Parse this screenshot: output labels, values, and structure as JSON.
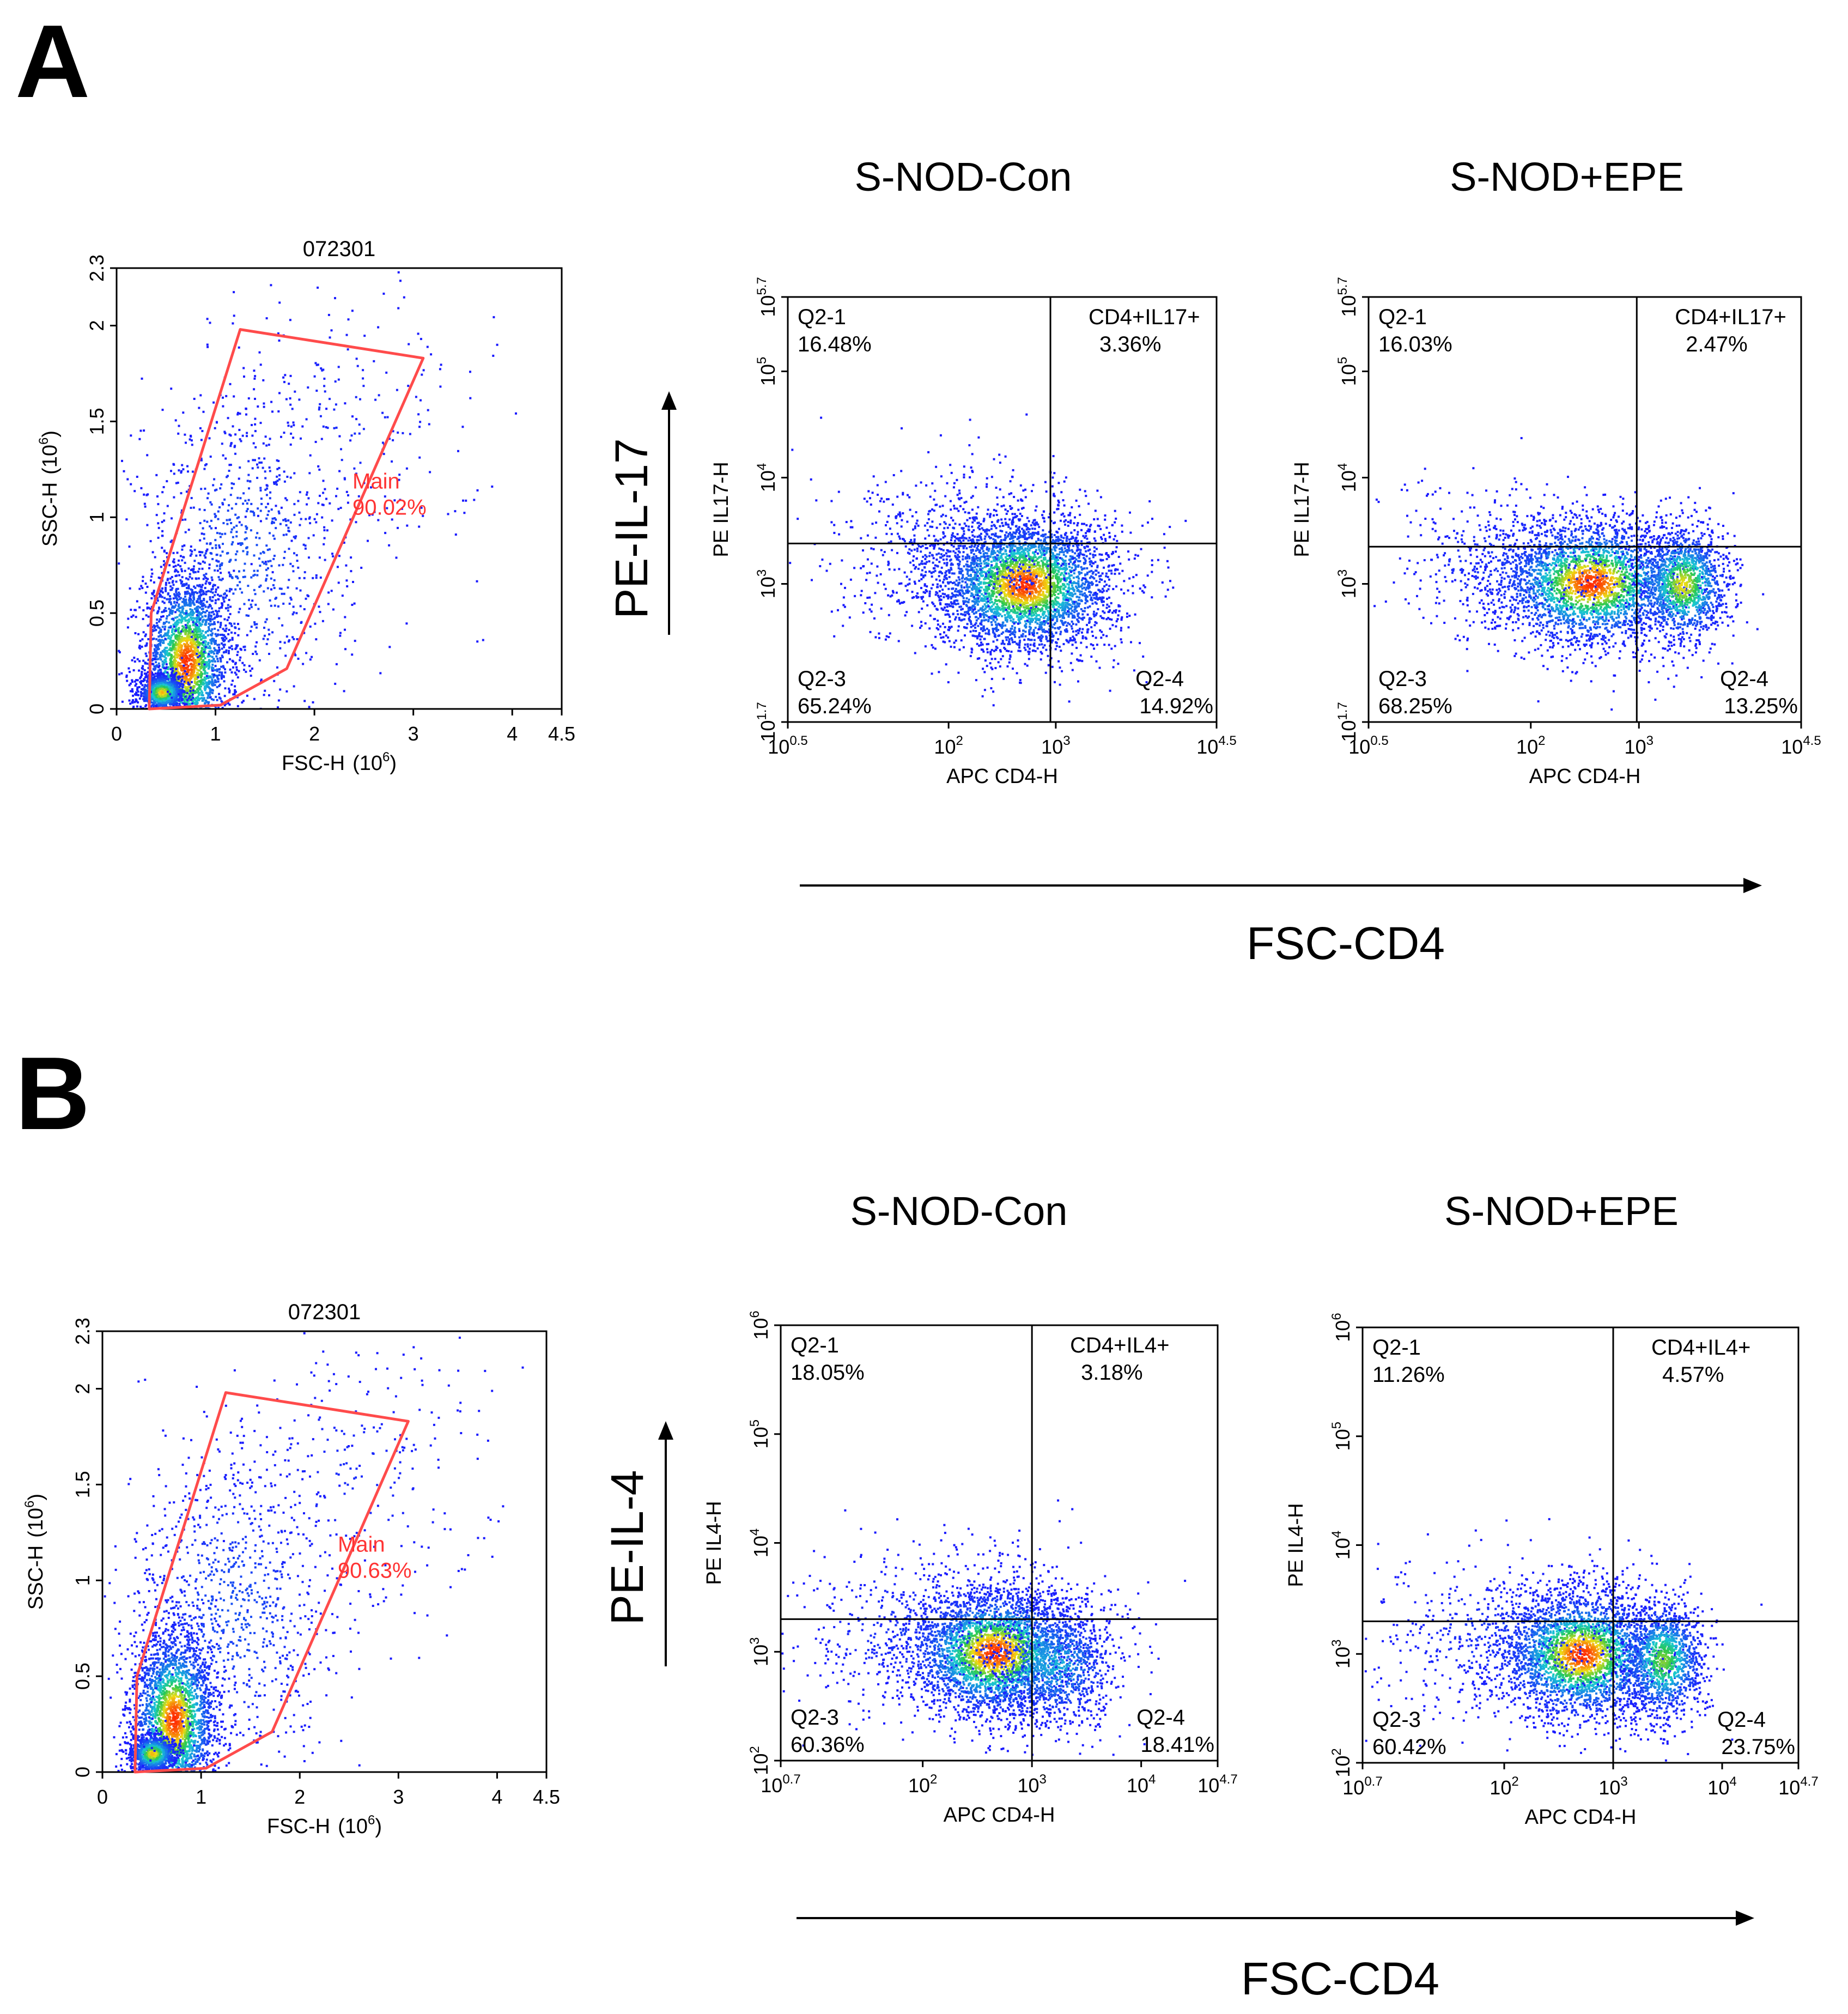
{
  "panels": [
    {
      "letter": "A",
      "group_titles": {
        "control": "S-NOD-Con",
        "treated": "S-NOD+EPE"
      },
      "y_arrow_label": "PE-IL-17",
      "x_arrow_label": "FSC-CD4"
    },
    {
      "letter": "B",
      "group_titles": {
        "control": "S-NOD-Con",
        "treated": "S-NOD+EPE"
      },
      "y_arrow_label": "PE-IL-4",
      "x_arrow_label": "FSC-CD4"
    }
  ],
  "colors": {
    "gate": "#ff4b4b",
    "density_low": "#1a1aff",
    "density_mid": "#19c8d2",
    "density_high": "#ff2a00"
  },
  "chart_data": [
    {
      "type": "scatter",
      "id": "A-gate",
      "title": "072301",
      "xlabel": "FSC-H",
      "xlabel_unit": "(10",
      "xlabel_unit_exp": "6",
      "xlabel_unit_close": ")",
      "ylabel": "SSC-H",
      "ylabel_unit": "(10",
      "ylabel_unit_exp": "6",
      "ylabel_unit_close": ")",
      "x_scale": "linear",
      "y_scale": "linear",
      "xlim": [
        0,
        4.5
      ],
      "ylim": [
        0,
        2.3
      ],
      "x_ticks": [
        {
          "v": 0,
          "t": "0"
        },
        {
          "v": 1,
          "t": "1"
        },
        {
          "v": 2,
          "t": "2"
        },
        {
          "v": 3,
          "t": "3"
        },
        {
          "v": 4,
          "t": "4"
        },
        {
          "v": 4.5,
          "t": "4.5"
        }
      ],
      "y_ticks": [
        {
          "v": 0,
          "t": "0"
        },
        {
          "v": 0.5,
          "t": "0.5"
        },
        {
          "v": 1,
          "t": "1"
        },
        {
          "v": 1.5,
          "t": "1.5"
        },
        {
          "v": 2,
          "t": "2"
        },
        {
          "v": 2.3,
          "t": "2.3"
        }
      ],
      "gate": {
        "name": "Main",
        "percent": "90.02%",
        "polygon": [
          [
            0.33,
            0.0
          ],
          [
            1.05,
            0.02
          ],
          [
            1.72,
            0.21
          ],
          [
            3.1,
            1.83
          ],
          [
            1.25,
            1.98
          ],
          [
            0.35,
            0.5
          ]
        ]
      },
      "clusters": [
        {
          "cx": 0.7,
          "cy": 0.25,
          "sx": 0.22,
          "sy": 0.24,
          "n": 2600,
          "peak": 1.0
        },
        {
          "cx": 0.45,
          "cy": 0.09,
          "sx": 0.12,
          "sy": 0.05,
          "n": 900,
          "peak": 0.85
        },
        {
          "cx": 1.25,
          "cy": 0.8,
          "sx": 0.55,
          "sy": 0.45,
          "n": 900,
          "peak": 0.15
        },
        {
          "cx": 2.3,
          "cy": 1.45,
          "sx": 0.7,
          "sy": 0.4,
          "n": 220,
          "peak": 0.05
        }
      ]
    },
    {
      "type": "scatter",
      "id": "A-control",
      "xlabel": "APC CD4-H",
      "ylabel": "PE IL17-H",
      "x_scale": "log",
      "y_scale": "log",
      "xlim": [
        0.5,
        4.5
      ],
      "ylim": [
        1.7,
        5.7
      ],
      "x_ticks": [
        {
          "v": 0.5,
          "b": "10",
          "e": "0.5"
        },
        {
          "v": 2,
          "b": "10",
          "e": "2"
        },
        {
          "v": 3,
          "b": "10",
          "e": "3"
        },
        {
          "v": 4.5,
          "b": "10",
          "e": "4.5"
        }
      ],
      "y_ticks": [
        {
          "v": 1.7,
          "b": "10",
          "e": "1.7"
        },
        {
          "v": 3,
          "b": "10",
          "e": "3"
        },
        {
          "v": 4,
          "b": "10",
          "e": "4"
        },
        {
          "v": 5,
          "b": "10",
          "e": "5"
        },
        {
          "v": 5.7,
          "b": "10",
          "e": "5.7"
        }
      ],
      "quadrant_x": 2.95,
      "quadrant_y": 3.38,
      "quadrants": {
        "ul": {
          "name": "Q2-1",
          "pct": "16.48%"
        },
        "ur": {
          "name": "CD4+IL17+",
          "pct": "3.36%"
        },
        "ll": {
          "name": "Q2-3",
          "pct": "65.24%"
        },
        "lr": {
          "name": "Q2-4",
          "pct": "14.92%"
        }
      },
      "clusters": [
        {
          "cx": 2.7,
          "cy": 3.0,
          "sx": 0.42,
          "sy": 0.32,
          "n": 3600,
          "peak": 1.0
        },
        {
          "cx": 2.2,
          "cy": 3.3,
          "sx": 0.65,
          "sy": 0.4,
          "n": 700,
          "peak": 0.1
        }
      ]
    },
    {
      "type": "scatter",
      "id": "A-treated",
      "xlabel": "APC CD4-H",
      "ylabel": "PE IL17-H",
      "x_scale": "log",
      "y_scale": "log",
      "xlim": [
        0.5,
        4.5
      ],
      "ylim": [
        1.7,
        5.7
      ],
      "x_ticks": [
        {
          "v": 0.5,
          "b": "10",
          "e": "0.5"
        },
        {
          "v": 2,
          "b": "10",
          "e": "2"
        },
        {
          "v": 3,
          "b": "10",
          "e": "3"
        },
        {
          "v": 4.5,
          "b": "10",
          "e": "4.5"
        }
      ],
      "y_ticks": [
        {
          "v": 1.7,
          "b": "10",
          "e": "1.7"
        },
        {
          "v": 3,
          "b": "10",
          "e": "3"
        },
        {
          "v": 4,
          "b": "10",
          "e": "4"
        },
        {
          "v": 5,
          "b": "10",
          "e": "5"
        },
        {
          "v": 5.7,
          "b": "10",
          "e": "5.7"
        }
      ],
      "quadrant_x": 2.98,
      "quadrant_y": 3.35,
      "quadrants": {
        "ul": {
          "name": "Q2-1",
          "pct": "16.03%"
        },
        "ur": {
          "name": "CD4+IL17+",
          "pct": "2.47%"
        },
        "ll": {
          "name": "Q2-3",
          "pct": "68.25%"
        },
        "lr": {
          "name": "Q2-4",
          "pct": "13.25%"
        }
      },
      "clusters": [
        {
          "cx": 2.55,
          "cy": 3.02,
          "sx": 0.45,
          "sy": 0.3,
          "n": 2800,
          "peak": 1.0
        },
        {
          "cx": 3.4,
          "cy": 3.0,
          "sx": 0.22,
          "sy": 0.28,
          "n": 1300,
          "peak": 0.8
        },
        {
          "cx": 1.9,
          "cy": 3.2,
          "sx": 0.65,
          "sy": 0.35,
          "n": 500,
          "peak": 0.1
        }
      ]
    },
    {
      "type": "scatter",
      "id": "B-gate",
      "title": "072301",
      "xlabel": "FSC-H",
      "xlabel_unit": "(10",
      "xlabel_unit_exp": "6",
      "xlabel_unit_close": ")",
      "ylabel": "SSC-H",
      "ylabel_unit": "(10",
      "ylabel_unit_exp": "6",
      "ylabel_unit_close": ")",
      "x_scale": "linear",
      "y_scale": "linear",
      "xlim": [
        0,
        4.5
      ],
      "ylim": [
        0,
        2.3
      ],
      "x_ticks": [
        {
          "v": 0,
          "t": "0"
        },
        {
          "v": 1,
          "t": "1"
        },
        {
          "v": 2,
          "t": "2"
        },
        {
          "v": 3,
          "t": "3"
        },
        {
          "v": 4,
          "t": "4"
        },
        {
          "v": 4.5,
          "t": "4.5"
        }
      ],
      "y_ticks": [
        {
          "v": 0,
          "t": "0"
        },
        {
          "v": 0.5,
          "t": "0.5"
        },
        {
          "v": 1,
          "t": "1"
        },
        {
          "v": 1.5,
          "t": "1.5"
        },
        {
          "v": 2,
          "t": "2"
        },
        {
          "v": 2.3,
          "t": "2.3"
        }
      ],
      "gate": {
        "name": "Main",
        "percent": "90.63%",
        "polygon": [
          [
            0.33,
            0.0
          ],
          [
            1.05,
            0.02
          ],
          [
            1.72,
            0.21
          ],
          [
            3.1,
            1.83
          ],
          [
            1.25,
            1.98
          ],
          [
            0.35,
            0.5
          ]
        ]
      },
      "clusters": [
        {
          "cx": 0.72,
          "cy": 0.28,
          "sx": 0.22,
          "sy": 0.24,
          "n": 2600,
          "peak": 1.0
        },
        {
          "cx": 0.5,
          "cy": 0.1,
          "sx": 0.12,
          "sy": 0.05,
          "n": 900,
          "peak": 0.85
        },
        {
          "cx": 1.3,
          "cy": 0.85,
          "sx": 0.55,
          "sy": 0.45,
          "n": 900,
          "peak": 0.15
        },
        {
          "cx": 2.5,
          "cy": 1.55,
          "sx": 0.7,
          "sy": 0.4,
          "n": 240,
          "peak": 0.05
        }
      ]
    },
    {
      "type": "scatter",
      "id": "B-control",
      "xlabel": "APC CD4-H",
      "ylabel": "PE IL4-H",
      "x_scale": "log",
      "y_scale": "log",
      "xlim": [
        0.7,
        4.7
      ],
      "ylim": [
        2,
        6
      ],
      "x_ticks": [
        {
          "v": 0.7,
          "b": "10",
          "e": "0.7"
        },
        {
          "v": 2,
          "b": "10",
          "e": "2"
        },
        {
          "v": 3,
          "b": "10",
          "e": "3"
        },
        {
          "v": 4,
          "b": "10",
          "e": "4"
        },
        {
          "v": 4.7,
          "b": "10",
          "e": "4.7"
        }
      ],
      "y_ticks": [
        {
          "v": 2,
          "b": "10",
          "e": "2"
        },
        {
          "v": 3,
          "b": "10",
          "e": "3"
        },
        {
          "v": 4,
          "b": "10",
          "e": "4"
        },
        {
          "v": 5,
          "b": "10",
          "e": "5"
        },
        {
          "v": 6,
          "b": "10",
          "e": "6"
        }
      ],
      "quadrant_x": 3.0,
      "quadrant_y": 3.3,
      "quadrants": {
        "ul": {
          "name": "Q2-1",
          "pct": "18.05%"
        },
        "ur": {
          "name": "CD4+IL4+",
          "pct": "3.18%"
        },
        "ll": {
          "name": "Q2-3",
          "pct": "60.36%"
        },
        "lr": {
          "name": "Q2-4",
          "pct": "18.41%"
        }
      },
      "clusters": [
        {
          "cx": 2.65,
          "cy": 3.0,
          "sx": 0.4,
          "sy": 0.3,
          "n": 3200,
          "peak": 1.0
        },
        {
          "cx": 3.2,
          "cy": 2.9,
          "sx": 0.3,
          "sy": 0.3,
          "n": 900,
          "peak": 0.4
        },
        {
          "cx": 2.1,
          "cy": 3.2,
          "sx": 0.7,
          "sy": 0.4,
          "n": 600,
          "peak": 0.1
        }
      ]
    },
    {
      "type": "scatter",
      "id": "B-treated",
      "xlabel": "APC CD4-H",
      "ylabel": "PE IL4-H",
      "x_scale": "log",
      "y_scale": "log",
      "xlim": [
        0.7,
        4.7
      ],
      "ylim": [
        2,
        6
      ],
      "x_ticks": [
        {
          "v": 0.7,
          "b": "10",
          "e": "0.7"
        },
        {
          "v": 2,
          "b": "10",
          "e": "2"
        },
        {
          "v": 3,
          "b": "10",
          "e": "3"
        },
        {
          "v": 4,
          "b": "10",
          "e": "4"
        },
        {
          "v": 4.7,
          "b": "10",
          "e": "4.7"
        }
      ],
      "y_ticks": [
        {
          "v": 2,
          "b": "10",
          "e": "2"
        },
        {
          "v": 3,
          "b": "10",
          "e": "3"
        },
        {
          "v": 4,
          "b": "10",
          "e": "4"
        },
        {
          "v": 5,
          "b": "10",
          "e": "5"
        },
        {
          "v": 6,
          "b": "10",
          "e": "6"
        }
      ],
      "quadrant_x": 3.0,
      "quadrant_y": 3.3,
      "quadrants": {
        "ul": {
          "name": "Q2-1",
          "pct": "11.26%"
        },
        "ur": {
          "name": "CD4+IL4+",
          "pct": "4.57%"
        },
        "ll": {
          "name": "Q2-3",
          "pct": "60.42%"
        },
        "lr": {
          "name": "Q2-4",
          "pct": "23.75%"
        }
      },
      "clusters": [
        {
          "cx": 2.7,
          "cy": 3.0,
          "sx": 0.38,
          "sy": 0.3,
          "n": 2800,
          "peak": 1.0
        },
        {
          "cx": 3.45,
          "cy": 2.95,
          "sx": 0.2,
          "sy": 0.28,
          "n": 1200,
          "peak": 0.7
        },
        {
          "cx": 2.1,
          "cy": 3.15,
          "sx": 0.7,
          "sy": 0.4,
          "n": 600,
          "peak": 0.1
        }
      ]
    }
  ]
}
